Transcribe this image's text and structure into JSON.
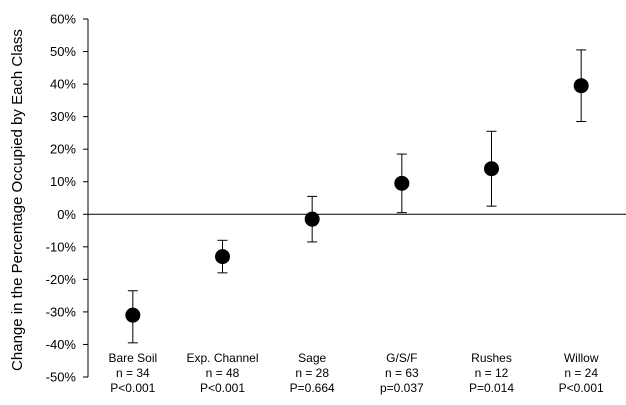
{
  "chart_data": {
    "type": "scatter",
    "title": "",
    "xlabel": "",
    "ylabel": "Change in the Percentage Occupied by Each Class",
    "ylim": [
      -50,
      60
    ],
    "ytick_values": [
      -50,
      -40,
      -30,
      -20,
      -10,
      0,
      10,
      20,
      30,
      40,
      50,
      60
    ],
    "ytick_labels": [
      "-50%",
      "-40%",
      "-30%",
      "-20%",
      "-10%",
      "0%",
      "10%",
      "20%",
      "30%",
      "40%",
      "50%",
      "60%"
    ],
    "grid": false,
    "legend": "none",
    "zero_line": true,
    "marker_color": "#000000",
    "categories": [
      {
        "name": "Bare Soil",
        "n": "n = 34",
        "p": "P<0.001",
        "value": -31,
        "err_low": -39.5,
        "err_high": -23.5
      },
      {
        "name": "Exp. Channel",
        "n": "n = 48",
        "p": "P<0.001",
        "value": -13,
        "err_low": -18,
        "err_high": -8
      },
      {
        "name": "Sage",
        "n": "n = 28",
        "p": "P=0.664",
        "value": -1.5,
        "err_low": -8.5,
        "err_high": 5.5
      },
      {
        "name": "G/S/F",
        "n": "n = 63",
        "p": "p=0.037",
        "value": 9.5,
        "err_low": 0.5,
        "err_high": 18.5
      },
      {
        "name": "Rushes",
        "n": "n = 12",
        "p": "P=0.014",
        "value": 14,
        "err_low": 2.5,
        "err_high": 25.5
      },
      {
        "name": "Willow",
        "n": "n = 24",
        "p": "P<0.001",
        "value": 39.5,
        "err_low": 28.5,
        "err_high": 50.5
      }
    ]
  }
}
